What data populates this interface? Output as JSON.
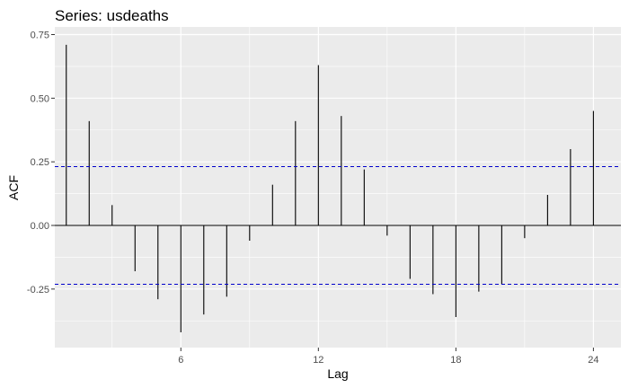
{
  "chart_data": {
    "type": "bar",
    "title": "Series: usdeaths",
    "xlabel": "Lag",
    "ylabel": "ACF",
    "xlim": [
      0.5,
      25.2
    ],
    "ylim": [
      -0.48,
      0.78
    ],
    "x_ticks": [
      6,
      12,
      18,
      24
    ],
    "x_minor_ticks": [
      3,
      9,
      15,
      21
    ],
    "y_ticks": [
      -0.25,
      0,
      0.25,
      0.5,
      0.75
    ],
    "y_minor_ticks": [
      -0.375,
      -0.125,
      0.125,
      0.375,
      0.625
    ],
    "y_tick_labels": [
      "-0.25",
      "0.00",
      "0.25",
      "0.50",
      "0.75"
    ],
    "x_tick_labels": [
      "6",
      "12",
      "18",
      "24"
    ],
    "lags": [
      1,
      2,
      3,
      4,
      5,
      6,
      7,
      8,
      9,
      10,
      11,
      12,
      13,
      14,
      15,
      16,
      17,
      18,
      19,
      20,
      21,
      22,
      23,
      24
    ],
    "values": [
      0.71,
      0.41,
      0.08,
      -0.18,
      -0.29,
      -0.42,
      -0.35,
      -0.28,
      -0.06,
      0.16,
      0.41,
      0.63,
      0.43,
      0.22,
      -0.04,
      -0.21,
      -0.27,
      -0.36,
      -0.26,
      -0.23,
      -0.05,
      0.12,
      0.3,
      0.45
    ],
    "confidence_limit": 0.231,
    "grid": true,
    "colors": {
      "panel_background": "#ebebeb",
      "grid": "#ffffff",
      "bars": "#000000",
      "zero_line": "#000000",
      "confidence_lines": "#0000cc"
    }
  }
}
